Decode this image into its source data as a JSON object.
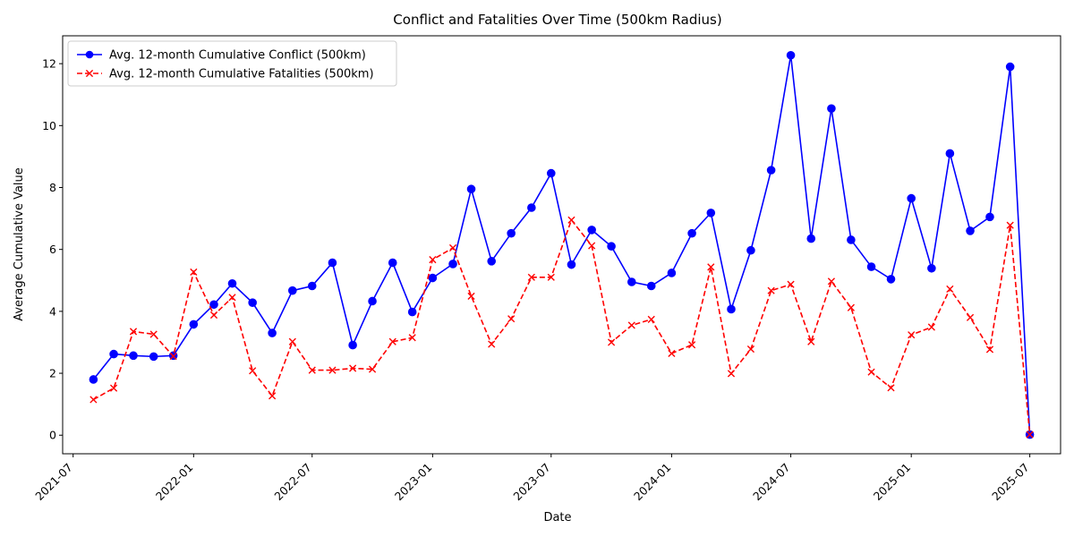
{
  "chart_data": {
    "type": "line",
    "title": "Conflict and Fatalities Over Time (500km Radius)",
    "xlabel": "Date",
    "ylabel": "Average Cumulative Value",
    "xlim": [
      "2021-06-15",
      "2025-08-17"
    ],
    "ylim": [
      -0.6,
      12.9
    ],
    "x_ticks": [
      "2021-07",
      "2022-01",
      "2022-07",
      "2023-01",
      "2023-07",
      "2024-01",
      "2024-07",
      "2025-01",
      "2025-07"
    ],
    "y_ticks": [
      0,
      2,
      4,
      6,
      8,
      10,
      12
    ],
    "grid": false,
    "legend_position": "top-left",
    "x": [
      "2021-08-01",
      "2021-09-01",
      "2021-10-01",
      "2021-11-01",
      "2021-12-01",
      "2022-01-01",
      "2022-02-01",
      "2022-03-01",
      "2022-04-01",
      "2022-05-01",
      "2022-06-01",
      "2022-07-01",
      "2022-08-01",
      "2022-09-01",
      "2022-10-01",
      "2022-11-01",
      "2022-12-01",
      "2023-01-01",
      "2023-02-01",
      "2023-03-01",
      "2023-04-01",
      "2023-05-01",
      "2023-06-01",
      "2023-07-01",
      "2023-08-01",
      "2023-09-01",
      "2023-10-01",
      "2023-11-01",
      "2023-12-01",
      "2024-01-01",
      "2024-02-01",
      "2024-03-01",
      "2024-04-01",
      "2024-05-01",
      "2024-06-01",
      "2024-07-01",
      "2024-08-01",
      "2024-09-01",
      "2024-10-01",
      "2024-11-01",
      "2024-12-01",
      "2025-01-01",
      "2025-02-01",
      "2025-03-01",
      "2025-04-01",
      "2025-05-01",
      "2025-06-01",
      "2025-07-01"
    ],
    "series": [
      {
        "name": "Avg. 12-month Cumulative Conflict (500km)",
        "color": "#0000ff",
        "line_style": "solid",
        "marker": "circle",
        "values": [
          1.8,
          2.62,
          2.57,
          2.54,
          2.57,
          3.58,
          4.22,
          4.9,
          4.28,
          3.3,
          4.67,
          4.82,
          5.57,
          2.91,
          4.33,
          5.57,
          3.98,
          5.08,
          5.53,
          7.95,
          5.62,
          6.52,
          7.35,
          8.46,
          5.51,
          6.63,
          6.1,
          4.95,
          4.82,
          5.24,
          6.52,
          7.18,
          4.07,
          5.97,
          8.56,
          12.27,
          6.35,
          10.55,
          6.31,
          5.44,
          5.04,
          7.65,
          5.39,
          9.1,
          6.6,
          7.05,
          11.9,
          0.02
        ]
      },
      {
        "name": "Avg. 12-month Cumulative Fatalities (500km)",
        "color": "#ff0000",
        "line_style": "dashed",
        "marker": "x",
        "values": [
          1.15,
          1.52,
          3.35,
          3.26,
          2.55,
          5.27,
          3.88,
          4.45,
          2.08,
          1.27,
          3.02,
          2.1,
          2.1,
          2.16,
          2.13,
          3.02,
          3.15,
          5.67,
          6.05,
          4.49,
          2.94,
          3.76,
          5.1,
          5.1,
          6.95,
          6.12,
          3.0,
          3.55,
          3.74,
          2.64,
          2.92,
          5.43,
          1.99,
          2.78,
          4.67,
          4.87,
          3.02,
          4.97,
          4.12,
          2.04,
          1.53,
          3.24,
          3.49,
          4.72,
          3.8,
          2.77,
          6.78,
          0.02
        ]
      }
    ]
  }
}
